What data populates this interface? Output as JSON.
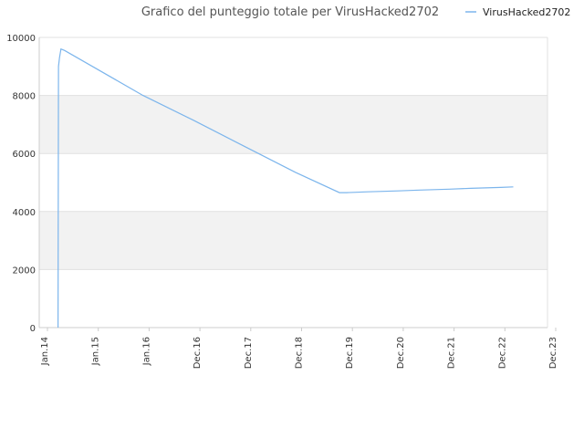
{
  "chart_data": {
    "type": "line",
    "title": "Grafico del punteggio totale per VirusHacked2702",
    "xlabel": "",
    "ylabel": "",
    "ylim": [
      0,
      10000
    ],
    "y_ticks": [
      "0",
      "2000",
      "4000",
      "6000",
      "8000",
      "10000"
    ],
    "x_ticks": [
      "Jan.14",
      "Jan.15",
      "Jan.16",
      "Dec.16",
      "Dec.17",
      "Dec.18",
      "Dec.19",
      "Dec.20",
      "Dec.21",
      "Dec.22",
      "Dec.23"
    ],
    "legend": "top-right",
    "banded_background": true,
    "series": [
      {
        "name": "VirusHacked2702",
        "color": "#7cb5ec",
        "points": [
          [
            "2014-05-15",
            0
          ],
          [
            "2014-05-18",
            9000
          ],
          [
            "2014-05-25",
            9300
          ],
          [
            "2014-06-05",
            9600
          ],
          [
            "2014-07-01",
            9550
          ],
          [
            "2015-01-15",
            9000
          ],
          [
            "2016-01-10",
            8000
          ],
          [
            "2017-01-01",
            7150
          ],
          [
            "2018-01-01",
            6250
          ],
          [
            "2019-01-01",
            5350
          ],
          [
            "2019-11-10",
            4650
          ],
          [
            "2020-01-01",
            4650
          ],
          [
            "2020-06-01",
            4680
          ],
          [
            "2021-01-01",
            4710
          ],
          [
            "2021-06-01",
            4740
          ],
          [
            "2022-01-01",
            4770
          ],
          [
            "2022-06-01",
            4800
          ],
          [
            "2023-01-01",
            4830
          ],
          [
            "2023-04-01",
            4850
          ]
        ]
      }
    ]
  }
}
